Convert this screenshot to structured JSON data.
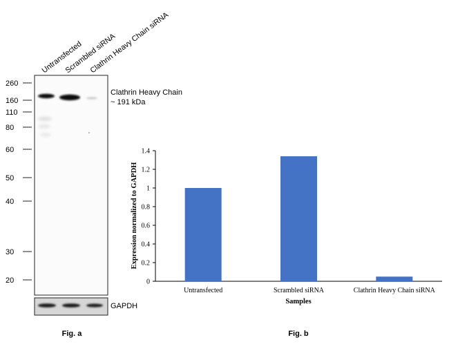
{
  "blot": {
    "lanes": [
      "Untransfected",
      "Scrambled siRNA",
      "Clathrin Heavy Chain siRNA"
    ],
    "markers": [
      "260",
      "160",
      "110",
      "80",
      "60",
      "50",
      "40",
      "30",
      "20"
    ],
    "band_label_line1": "Clathrin Heavy Chain",
    "band_label_line2": "~ 191 kDa",
    "loading_label": "GAPDH",
    "caption": "Fig. a"
  },
  "chart_data": {
    "type": "bar",
    "categories": [
      "Untransfected",
      "Scrambled siRNA",
      "Clathrin Heavy Chain siRNA"
    ],
    "values": [
      1.0,
      1.34,
      0.05
    ],
    "xlabel": "Samples",
    "ylabel": "Expression normalized to GAPDH",
    "ylim": [
      0,
      1.4
    ],
    "yticks": [
      "0",
      "0.2",
      "0.4",
      "0.6",
      "0.8",
      "1",
      "1.2",
      "1.4"
    ],
    "grid": false,
    "bar_color": "#4472c4",
    "caption": "Fig. b"
  }
}
